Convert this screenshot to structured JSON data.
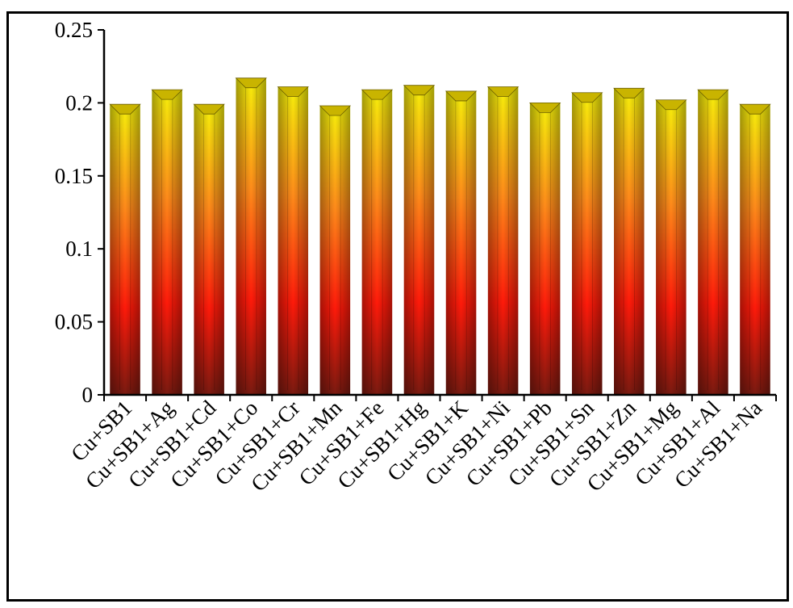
{
  "chart_data": {
    "type": "bar",
    "title": "",
    "xlabel": "",
    "ylabel": "",
    "ylim": [
      0,
      0.25
    ],
    "yticks": [
      "0",
      "0.05",
      "0.1",
      "0.15",
      "0.2",
      "0.25"
    ],
    "grid": false,
    "legend": "none",
    "categories": [
      "Cu+SB1",
      "Cu+SB1+Ag",
      "Cu+SB1+Cd",
      "Cu+SB1+Co",
      "Cu+SB1+Cr",
      "Cu+SB1+Mn",
      "Cu+SB1+Fe",
      "Cu+SB1+Hg",
      "Cu+SB1+K",
      "Cu+SB1+Ni",
      "Cu+SB1+Pb",
      "Cu+SB1+Sn",
      "Cu+SB1+Zn",
      "Cu+SB1+Mg",
      "Cu+SB1+Al",
      "Cu+SB1+Na"
    ],
    "values": [
      0.199,
      0.209,
      0.199,
      0.217,
      0.211,
      0.198,
      0.209,
      0.212,
      0.208,
      0.211,
      0.2,
      0.207,
      0.21,
      0.202,
      0.209,
      0.199
    ],
    "colors": {
      "top": "#f7f20a",
      "middle": "#ff8c1a",
      "low": "#ff1a0a",
      "bottom": "#7a1a10",
      "cap": "#c9b400"
    }
  }
}
